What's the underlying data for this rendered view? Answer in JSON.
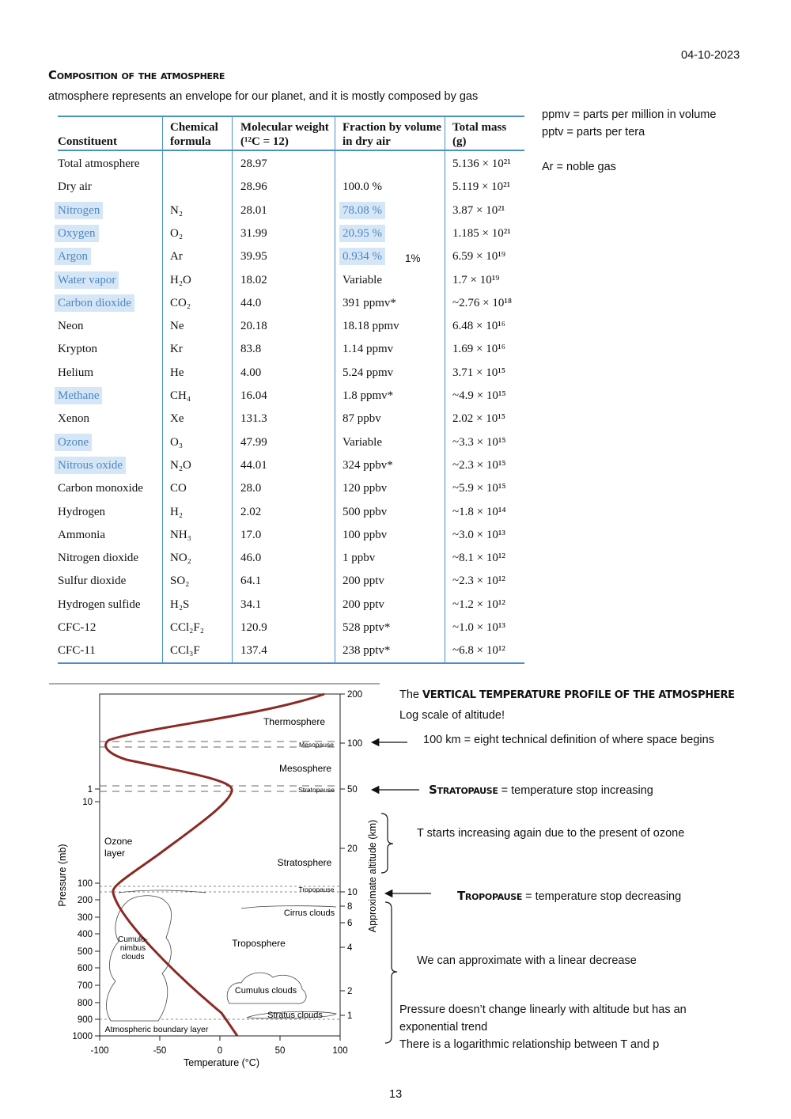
{
  "header": {
    "date": "04-10-2023",
    "title": "Composition of the atmosphere",
    "intro": "atmosphere represents an envelope for our planet, and it is mostly composed by gas"
  },
  "table": {
    "columns": [
      "Constituent",
      "Chemical formula",
      "Molecular weight (¹²C = 12)",
      "Fraction by volume in dry air",
      "Total mass (g)"
    ],
    "rows": [
      [
        "Total atmosphere",
        null,
        "28.97",
        null,
        "5.136 × 10²¹"
      ],
      [
        "Dry air",
        null,
        "28.96",
        "100.0 %",
        "5.119 × 10²¹"
      ],
      [
        "Nitrogen",
        "N₂",
        "28.01",
        "78.08 %",
        "3.87 × 10²¹"
      ],
      [
        "Oxygen",
        "O₂",
        "31.99",
        "20.95 %",
        "1.185 × 10²¹"
      ],
      [
        "Argon",
        "Ar",
        "39.95",
        "0.934 %",
        "6.59 × 10¹⁹"
      ],
      [
        "Water vapor",
        "H₂O",
        "18.02",
        "Variable",
        "1.7 × 10¹⁹"
      ],
      [
        "Carbon dioxide",
        "CO₂",
        "44.0",
        "391 ppmv*",
        "~2.76 × 10¹⁸"
      ],
      [
        "Neon",
        "Ne",
        "20.18",
        "18.18 ppmv",
        "6.48 × 10¹⁶"
      ],
      [
        "Krypton",
        "Kr",
        "83.8",
        "1.14 ppmv",
        "1.69 × 10¹⁶"
      ],
      [
        "Helium",
        "He",
        "4.00",
        "5.24 ppmv",
        "3.71 × 10¹⁵"
      ],
      [
        "Methane",
        "CH₄",
        "16.04",
        "1.8 ppmv*",
        "~4.9 × 10¹⁵"
      ],
      [
        "Xenon",
        "Xe",
        "131.3",
        "87 ppbv",
        "2.02 × 10¹⁵"
      ],
      [
        "Ozone",
        "O₃",
        "47.99",
        "Variable",
        "~3.3 × 10¹⁵"
      ],
      [
        "Nitrous oxide",
        "N₂O",
        "44.01",
        "324 ppbv*",
        "~2.3 × 10¹⁵"
      ],
      [
        "Carbon monoxide",
        "CO",
        "28.0",
        "120 ppbv",
        "~5.9 × 10¹⁵"
      ],
      [
        "Hydrogen",
        "H₂",
        "2.02",
        "500 ppbv",
        "~1.8 × 10¹⁴"
      ],
      [
        "Ammonia",
        "NH₃",
        "17.0",
        "100 ppbv",
        "~3.0 × 10¹³"
      ],
      [
        "Nitrogen dioxide",
        "NO₂",
        "46.0",
        "1 ppbv",
        "~8.1 × 10¹²"
      ],
      [
        "Sulfur dioxide",
        "SO₂",
        "64.1",
        "200 pptv",
        "~2.3 × 10¹²"
      ],
      [
        "Hydrogen sulfide",
        "H₂S",
        "34.1",
        "200 pptv",
        "~1.2 × 10¹²"
      ],
      [
        "CFC-12",
        "CCl₂F₂",
        "120.9",
        "528 pptv*",
        "~1.0 × 10¹³"
      ],
      [
        "CFC-11",
        "CCl₃F",
        "137.4",
        "238 pptv*",
        "~6.8 × 10¹²"
      ]
    ]
  },
  "table_notes": [
    "ppmv = parts per million in volume",
    "pptv = parts per tera",
    "Ar = noble gas"
  ],
  "argon_note": "1%",
  "figure": {
    "temperature_label": "Temperature (°C)",
    "pressure_label": "Pressure (mb)",
    "altitude_label": "Approximate altitude (km)",
    "temperature_ticks": [
      -100,
      -50,
      0,
      50,
      100
    ],
    "pressure_ticks": [
      1,
      10,
      100,
      200,
      300,
      400,
      500,
      600,
      700,
      800,
      900,
      1000
    ],
    "altitude_ticks": [
      200,
      100,
      50,
      20,
      10,
      8,
      6,
      4,
      2,
      1
    ],
    "layers": [
      "Thermosphere",
      "Mesopause",
      "Mesosphere",
      "Stratopause",
      "Stratosphere",
      "Tropopause",
      "Cirrus clouds",
      "Troposphere",
      "Cumulus clouds",
      "Stratus clouds",
      "Atmospheric boundary layer"
    ],
    "ozone_layer": [
      "Ozone",
      "layer"
    ],
    "cumulonimbus": [
      "Cumulo-",
      "nimbus",
      "clouds"
    ]
  },
  "annotations": {
    "heading_prefix": "The",
    "heading": "VERTICAL TEMPERATURE PROFILE OF THE ATMOSPHERE",
    "log_scale": "Log scale of altitude!",
    "space": "100 km = eight technical definition of where space begins",
    "stratopause_term": "Stratopause",
    "stratopause_text": "= temperature stop increasing",
    "ozone": "T starts increasing again due to the present of ozone",
    "tropopause_term": "Tropopause",
    "tropopause_text": "= temperature stop decreasing",
    "linear": "We can approximate with a linear decrease",
    "pressure": [
      "Pressure doesn’t change linearly with altitude but has an",
      "exponential trend",
      "There is a logarithmic relationship between T and p"
    ]
  },
  "page_number": 13
}
